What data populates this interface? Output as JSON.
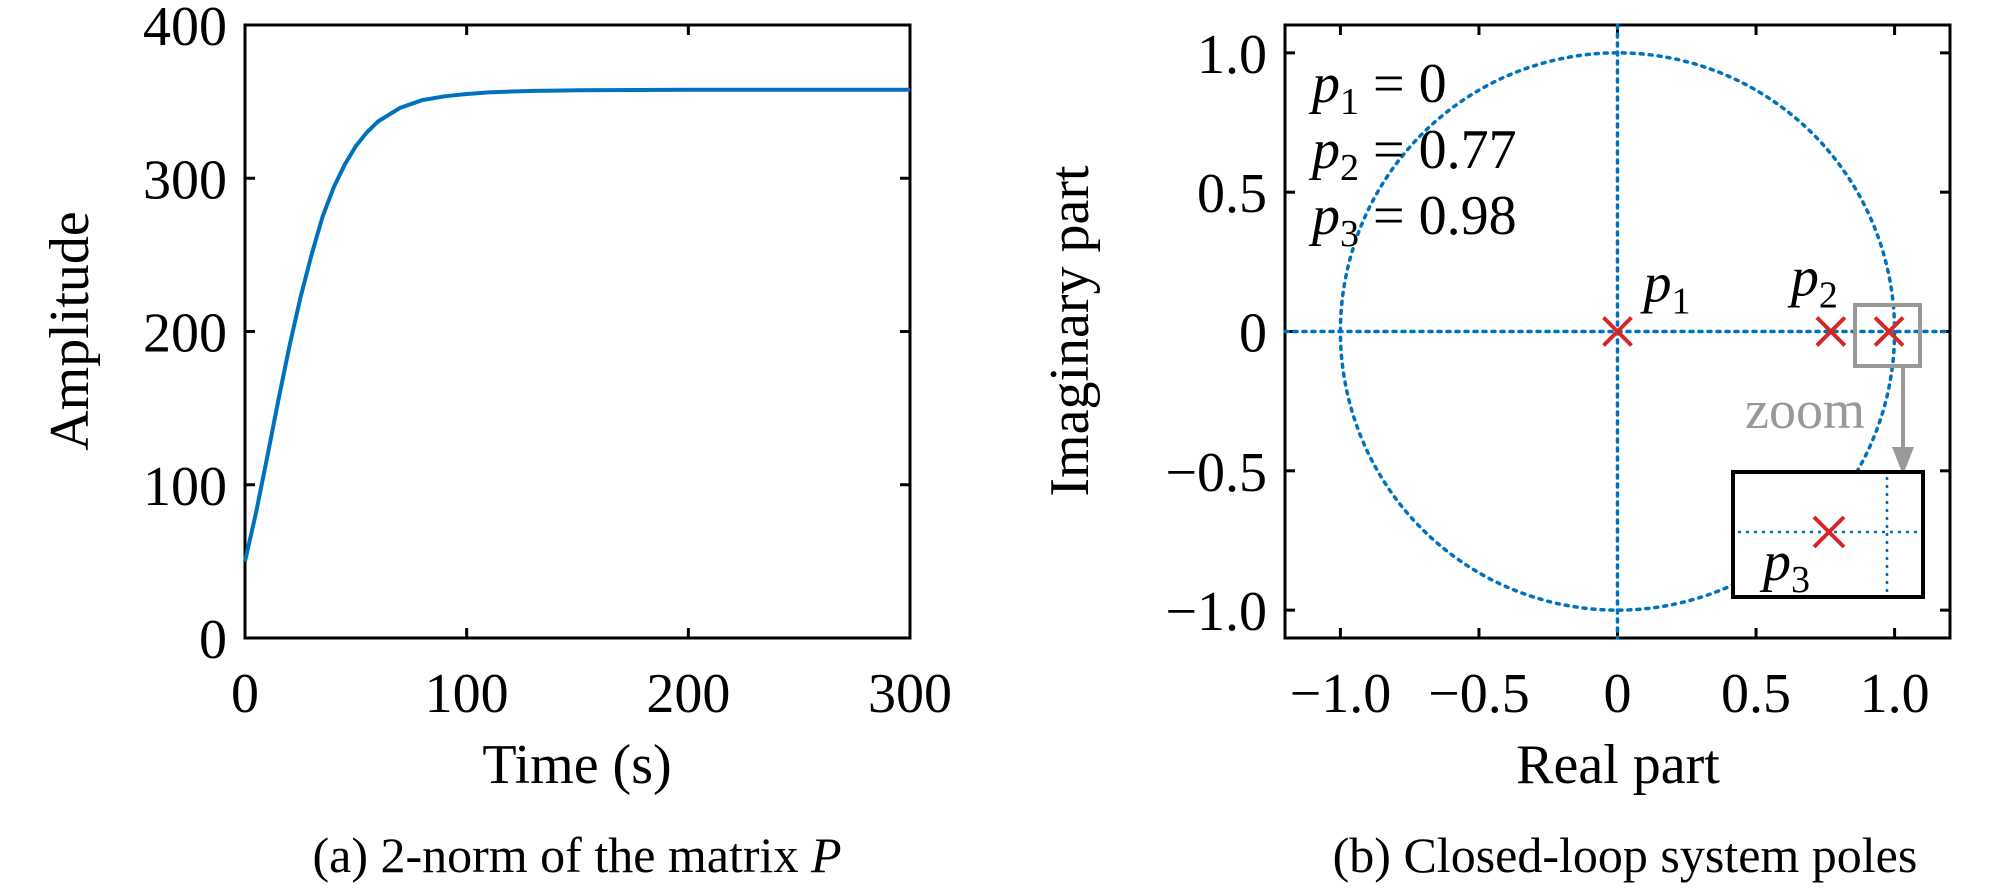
{
  "chart_data": [
    {
      "type": "line",
      "caption": "(a) 2-norm of the matrix P",
      "xlabel": "Time (s)",
      "ylabel": "Amplitude",
      "xlim": [
        0,
        300
      ],
      "ylim": [
        0,
        400
      ],
      "xticks": [
        "0",
        "100",
        "200",
        "300"
      ],
      "yticks": [
        "0",
        "100",
        "200",
        "300",
        "400"
      ],
      "color": "#0072BD",
      "x": [
        0,
        5,
        10,
        15,
        20,
        25,
        30,
        35,
        40,
        45,
        50,
        55,
        60,
        70,
        80,
        90,
        100,
        110,
        120,
        130,
        140,
        150,
        175,
        200,
        250,
        300
      ],
      "y": [
        50,
        82,
        118,
        155,
        190,
        222,
        250,
        275,
        294,
        309,
        321,
        330,
        337,
        346,
        351,
        353.5,
        355,
        356,
        356.6,
        357,
        357.2,
        357.4,
        357.6,
        357.7,
        357.8,
        357.8
      ]
    },
    {
      "type": "scatter",
      "caption": "(b) Closed-loop system poles",
      "xlabel": "Real part",
      "ylabel": "Imaginary part",
      "xlim": [
        -1.2,
        1.2
      ],
      "ylim": [
        -1.1,
        1.1
      ],
      "xticks": [
        "−1.0",
        "−0.5",
        "0",
        "0.5",
        "1.0"
      ],
      "yticks": [
        "−1.0",
        "−0.5",
        "0",
        "0.5",
        "1.0"
      ],
      "unit_circle": true,
      "circle_color": "#0072BD",
      "marker_color": "#D62728",
      "points": [
        {
          "label": "p",
          "sub": "1",
          "x": 0,
          "y": 0
        },
        {
          "label": "p",
          "sub": "2",
          "x": 0.77,
          "y": 0
        },
        {
          "label": "p",
          "sub": "3",
          "x": 0.98,
          "y": 0
        }
      ],
      "annotations": [
        {
          "sym": "p",
          "sub": "1",
          "text": " = 0"
        },
        {
          "sym": "p",
          "sub": "2",
          "text": " = 0.77"
        },
        {
          "sym": "p",
          "sub": "3",
          "text": " = 0.98"
        }
      ],
      "zoom_label": "zoom",
      "inset_label": {
        "sym": "p",
        "sub": "3"
      }
    }
  ]
}
